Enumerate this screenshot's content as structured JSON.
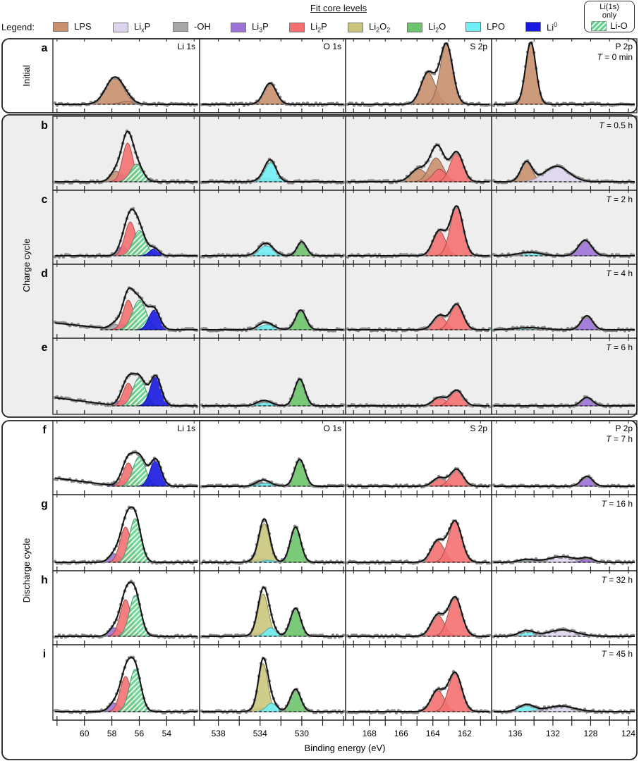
{
  "legend": {
    "title": "Fit core levels",
    "label": "Legend:",
    "items": [
      {
        "key": "LPS",
        "base": "LPS",
        "sub": "",
        "rest": "",
        "sup": ""
      },
      {
        "key": "LixP",
        "base": "Li",
        "sub": "x",
        "rest": "P",
        "sup": ""
      },
      {
        "key": "OH",
        "base": "-OH",
        "sub": "",
        "rest": "",
        "sup": ""
      },
      {
        "key": "Li3P",
        "base": "Li",
        "sub": "3",
        "rest": "P",
        "sup": ""
      },
      {
        "key": "Li2P",
        "base": "Li",
        "sub": "2",
        "rest": "P",
        "sup": ""
      },
      {
        "key": "Li2O2",
        "base": "Li",
        "sub": "2",
        "rest": "O",
        "sup": "",
        "sub2": "2"
      },
      {
        "key": "Li2O",
        "base": "Li",
        "sub": "2",
        "rest": "O",
        "sup": ""
      },
      {
        "key": "LPO",
        "base": "LPO",
        "sub": "",
        "rest": "",
        "sup": ""
      },
      {
        "key": "Li0",
        "base": "Li",
        "sub": "",
        "rest": "",
        "sup": "0"
      }
    ],
    "li_only": {
      "caption_1": "Li(1s)",
      "caption_2": "only",
      "label": "Li-O"
    }
  },
  "colors": {
    "LPS": "#c98f6e",
    "LixP": "#ddd5ee",
    "OH": "#a8a8a8",
    "Li3P": "#9d72d8",
    "Li2P": "#f47070",
    "Li2O2": "#cbc67c",
    "Li2O": "#6cc46c",
    "LPO": "#70f0f5",
    "Li0": "#1818e0",
    "Li-O": "#6fd69a"
  },
  "groups": [
    {
      "label": "Initial",
      "rows": [
        "a"
      ],
      "shaded": false
    },
    {
      "label": "Charge cycle",
      "rows": [
        "b",
        "c",
        "d",
        "e"
      ],
      "shaded": true
    },
    {
      "label": "Discharge cycle",
      "rows": [
        "f",
        "g",
        "h",
        "i"
      ],
      "shaded": false
    }
  ],
  "chart_data": {
    "type": "line",
    "xlabel": "Binding energy (eV)",
    "x_reversed": true,
    "y_units": "a.u.",
    "columns": [
      {
        "key": "li",
        "title": "Li 1s",
        "xlim": [
          62.3,
          51.6
        ],
        "ticks": [
          62,
          60,
          58,
          56,
          54,
          52
        ],
        "tick_labels": [
          "60",
          "58",
          "56",
          "54"
        ]
      },
      {
        "key": "o",
        "title": "O 1s",
        "xlim": [
          539.8,
          525.8
        ],
        "ticks": [
          538,
          536,
          534,
          532,
          530,
          528,
          526
        ],
        "tick_labels": [
          "538",
          "534",
          "530"
        ]
      },
      {
        "key": "s",
        "title": "S 2p",
        "xlim": [
          169.5,
          160.3
        ],
        "ticks": [
          169,
          168,
          167,
          166,
          165,
          164,
          163,
          162,
          161
        ],
        "tick_labels": [
          "168",
          "166",
          "164",
          "162"
        ]
      },
      {
        "key": "p",
        "title": "P 2p",
        "xlim": [
          138.5,
          123.1
        ],
        "ticks": [
          138,
          136,
          134,
          132,
          130,
          128,
          126,
          124
        ],
        "tick_labels": [
          "136",
          "132",
          "128",
          "124"
        ]
      }
    ],
    "rows": [
      {
        "letter": "a",
        "time_prefix": "T",
        "time": " = 0 min",
        "show_titles": true,
        "li": [
          [
            "LPS",
            57.8,
            38,
            0.65
          ],
          [
            "LPS",
            56.9,
            4,
            0.5
          ]
        ],
        "o": [
          [
            "LPS",
            533.05,
            30,
            0.6
          ]
        ],
        "s": [
          [
            "LPS",
            164.3,
            45,
            0.45
          ],
          [
            "LPS",
            163.15,
            85,
            0.4
          ]
        ],
        "p": [
          [
            "LPS",
            134.35,
            88,
            0.55
          ]
        ]
      },
      {
        "letter": "b",
        "time_prefix": "T",
        "time": " = 0.5 h",
        "show_titles": false,
        "li": [
          [
            "LPS",
            57.7,
            15,
            0.4
          ],
          [
            "Li3P",
            57.2,
            10,
            0.35
          ],
          [
            "Li2P",
            56.85,
            55,
            0.38
          ],
          [
            "Li-O",
            56.2,
            25,
            0.45
          ]
        ],
        "o": [
          [
            "OH",
            533.4,
            5,
            0.7
          ],
          [
            "LPO",
            533.0,
            27,
            0.55
          ]
        ],
        "s": [
          [
            "LPS",
            164.9,
            18,
            0.5
          ],
          [
            "LPS",
            163.8,
            34,
            0.45
          ],
          [
            "Li2P",
            163.6,
            18,
            0.4
          ],
          [
            "Li2P",
            162.5,
            42,
            0.4
          ]
        ],
        "p": [
          [
            "LPS",
            134.8,
            28,
            0.6
          ],
          [
            "LixP",
            131.6,
            22,
            1.3
          ]
        ]
      },
      {
        "letter": "c",
        "time_prefix": "T",
        "time": " = 2 h",
        "show_titles": false,
        "li": [
          [
            "Li3P",
            57.2,
            13,
            0.35
          ],
          [
            "Li2P",
            56.65,
            48,
            0.4
          ],
          [
            "Li-O",
            56.0,
            36,
            0.45
          ],
          [
            "Li0",
            54.9,
            10,
            0.35
          ]
        ],
        "o": [
          [
            "OH",
            533.6,
            4,
            0.7
          ],
          [
            "LPO",
            533.4,
            14,
            0.7
          ],
          [
            "Li2O",
            530.0,
            20,
            0.45
          ]
        ],
        "s": [
          [
            "Li2P",
            163.6,
            35,
            0.4
          ],
          [
            "Li2P",
            162.5,
            70,
            0.4
          ]
        ],
        "p": [
          [
            "LPO",
            134.5,
            5,
            1.2
          ],
          [
            "Li3P",
            128.6,
            22,
            0.7
          ]
        ]
      },
      {
        "letter": "d",
        "time_prefix": "T",
        "time": " = 4 h",
        "show_titles": false,
        "li_background": [
          10,
          0
        ],
        "li": [
          [
            "OH",
            57.8,
            8,
            0.35
          ],
          [
            "Li3P",
            57.2,
            8,
            0.35
          ],
          [
            "Li2P",
            56.8,
            42,
            0.38
          ],
          [
            "Li-O",
            56.0,
            42,
            0.5
          ],
          [
            "Li0",
            54.9,
            28,
            0.4
          ]
        ],
        "o": [
          [
            "OH",
            533.7,
            4,
            0.6
          ],
          [
            "LPO",
            533.3,
            7,
            0.7
          ],
          [
            "Li2O",
            530.1,
            28,
            0.5
          ]
        ],
        "s": [
          [
            "Li2P",
            163.6,
            20,
            0.4
          ],
          [
            "Li2P",
            162.5,
            36,
            0.4
          ]
        ],
        "p": [
          [
            "LPO",
            134.5,
            3,
            1.5
          ],
          [
            "Li3P",
            128.4,
            20,
            0.6
          ]
        ]
      },
      {
        "letter": "e",
        "time_prefix": "T",
        "time": " = 6 h",
        "show_titles": false,
        "li_background": [
          12,
          0
        ],
        "li": [
          [
            "Li3P",
            57.3,
            8,
            0.35
          ],
          [
            "Li2P",
            56.8,
            32,
            0.38
          ],
          [
            "Li-O",
            56.0,
            40,
            0.45
          ],
          [
            "Li0",
            54.8,
            42,
            0.4
          ]
        ],
        "o": [
          [
            "OH",
            533.8,
            3,
            0.6
          ],
          [
            "LPO",
            533.5,
            5,
            0.7
          ],
          [
            "Li2O",
            530.2,
            38,
            0.5
          ]
        ],
        "s": [
          [
            "Li2P",
            163.6,
            12,
            0.4
          ],
          [
            "Li2P",
            162.5,
            22,
            0.4
          ]
        ],
        "p": [
          [
            "Li3P",
            128.4,
            12,
            0.6
          ]
        ]
      },
      {
        "letter": "f",
        "time_prefix": "T",
        "time": " = 7 h",
        "show_titles": true,
        "li_background": [
          12,
          0
        ],
        "li": [
          [
            "Li3P",
            57.3,
            7,
            0.35
          ],
          [
            "Li2P",
            56.8,
            33,
            0.38
          ],
          [
            "Li-O",
            56.0,
            42,
            0.45
          ],
          [
            "Li0",
            54.8,
            38,
            0.4
          ]
        ],
        "o": [
          [
            "OH",
            533.8,
            5,
            0.6
          ],
          [
            "LPO",
            533.5,
            4,
            0.7
          ],
          [
            "Li2O",
            530.2,
            38,
            0.5
          ]
        ],
        "s": [
          [
            "Li2P",
            163.6,
            12,
            0.4
          ],
          [
            "Li2P",
            162.5,
            24,
            0.4
          ]
        ],
        "p": [
          [
            "Li3P",
            128.4,
            14,
            0.6
          ]
        ]
      },
      {
        "letter": "g",
        "time_prefix": "T",
        "time": " = 16 h",
        "show_titles": false,
        "li": [
          [
            "Li3P",
            57.8,
            12,
            0.4
          ],
          [
            "Li2P",
            57.0,
            50,
            0.4
          ],
          [
            "Li-O",
            56.3,
            62,
            0.42
          ]
        ],
        "o": [
          [
            "OH",
            533.9,
            5,
            0.7
          ],
          [
            "Li2O2",
            533.6,
            55,
            0.5
          ],
          [
            "LPO",
            533.2,
            3,
            0.5
          ],
          [
            "Li2O",
            530.6,
            50,
            0.5
          ]
        ],
        "s": [
          [
            "Li2P",
            163.7,
            30,
            0.42
          ],
          [
            "Li2P",
            162.6,
            58,
            0.42
          ]
        ],
        "p": [
          [
            "LPO",
            134.8,
            4,
            0.8
          ],
          [
            "LixP",
            131.0,
            8,
            1.5
          ],
          [
            "Li3P",
            128.3,
            5,
            0.6
          ]
        ]
      },
      {
        "letter": "h",
        "time_prefix": "T",
        "time": " = 32 h",
        "show_titles": false,
        "li": [
          [
            "Li3P",
            57.8,
            12,
            0.4
          ],
          [
            "Li2P",
            57.0,
            52,
            0.4
          ],
          [
            "Li-O",
            56.3,
            58,
            0.42
          ]
        ],
        "o": [
          [
            "OH",
            533.9,
            5,
            0.7
          ],
          [
            "Li2O2",
            533.7,
            60,
            0.5
          ],
          [
            "LPO",
            533.0,
            12,
            0.5
          ],
          [
            "Li2O",
            530.6,
            40,
            0.5
          ]
        ],
        "s": [
          [
            "Li2P",
            163.7,
            30,
            0.42
          ],
          [
            "Li2P",
            162.6,
            55,
            0.42
          ]
        ],
        "p": [
          [
            "LPO",
            134.8,
            8,
            0.8
          ],
          [
            "LixP",
            131.0,
            9,
            1.5
          ]
        ]
      },
      {
        "letter": "i",
        "time_prefix": "T",
        "time": " = 45 h",
        "show_titles": false,
        "li": [
          [
            "Li3P",
            57.8,
            12,
            0.4
          ],
          [
            "Li2P",
            57.0,
            50,
            0.4
          ],
          [
            "Li-O",
            56.3,
            60,
            0.42
          ]
        ],
        "o": [
          [
            "OH",
            533.9,
            5,
            0.7
          ],
          [
            "Li2O2",
            533.7,
            68,
            0.45
          ],
          [
            "LPO",
            532.9,
            12,
            0.5
          ],
          [
            "Li2O",
            530.6,
            32,
            0.5
          ]
        ],
        "s": [
          [
            "Li2P",
            163.7,
            30,
            0.42
          ],
          [
            "Li2P",
            162.6,
            55,
            0.42
          ]
        ],
        "p": [
          [
            "LPO",
            134.8,
            10,
            0.8
          ],
          [
            "LixP",
            131.2,
            8,
            1.5
          ]
        ]
      }
    ]
  }
}
